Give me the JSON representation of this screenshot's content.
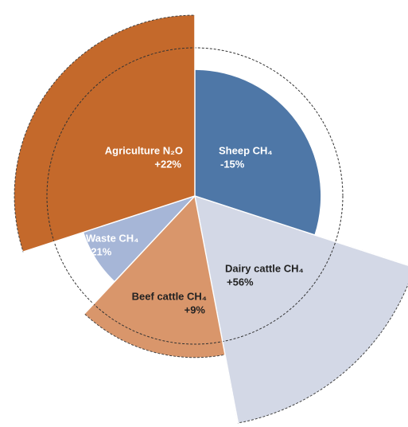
{
  "chart_data": {
    "type": "polar-area",
    "categories": [
      "Sheep CH₄",
      "Dairy cattle CH₄",
      "Beef cattle CH₄",
      "Waste CH₄",
      "Agriculture N₂O"
    ],
    "values": [
      -15,
      56,
      9,
      -21,
      22
    ],
    "value_labels": [
      "-15%",
      "+56%",
      "+9%",
      "-21%",
      "+22%"
    ],
    "shares": [
      30,
      17,
      15,
      8,
      30
    ],
    "colors": [
      "#4e77a7",
      "#d3d8e6",
      "#d9966b",
      "#a6b6d7",
      "#c4692b"
    ]
  }
}
